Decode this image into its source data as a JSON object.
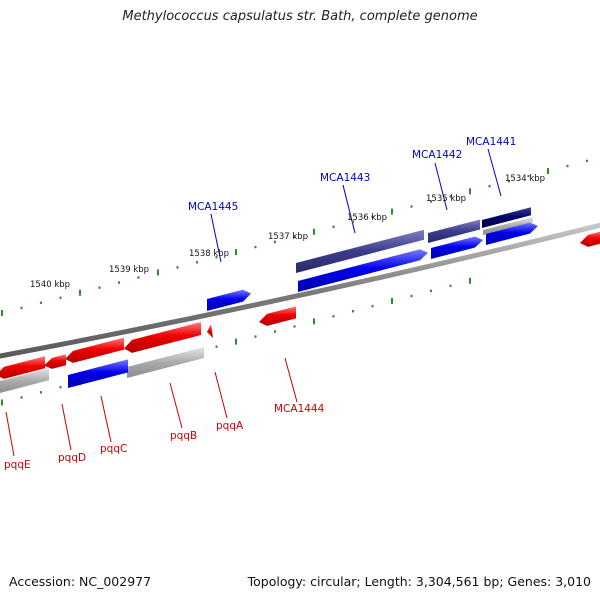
{
  "title": "Methylococcus capsulatus str. Bath, complete genome",
  "footer": {
    "accession": "Accession: NC_002977",
    "summary": "Topology: circular; Length: 3,304,561 bp; Genes: 3,010"
  },
  "colors": {
    "backbone": "#8a8a8a",
    "tick": "#2e8b2e",
    "reverse_gene": "#ee0000",
    "forward_gene": "#0000ee",
    "highlighted_gene": "#3c3c8c",
    "dark_gene": "#000066",
    "gray_feature": "#aaaaaa",
    "label_red": "#cc0000",
    "label_blue": "#0000cc"
  },
  "kbp_labels": [
    {
      "label": "1540 kbp"
    },
    {
      "label": "1539 kbp"
    },
    {
      "label": "1538 kbp"
    },
    {
      "label": "1537 kbp"
    },
    {
      "label": "1536 kbp"
    },
    {
      "label": "1535 kbp"
    },
    {
      "label": "1534 kbp"
    }
  ],
  "gene_labels": [
    {
      "name": "MCA1441",
      "strand": "forward"
    },
    {
      "name": "MCA1442",
      "strand": "forward"
    },
    {
      "name": "MCA1443",
      "strand": "forward"
    },
    {
      "name": "MCA1445",
      "strand": "forward"
    },
    {
      "name": "MCA1444",
      "strand": "reverse"
    },
    {
      "name": "pqqA",
      "strand": "reverse"
    },
    {
      "name": "pqqB",
      "strand": "reverse"
    },
    {
      "name": "pqqC",
      "strand": "reverse"
    },
    {
      "name": "pqqD",
      "strand": "reverse"
    },
    {
      "name": "pqqE",
      "strand": "reverse"
    }
  ]
}
